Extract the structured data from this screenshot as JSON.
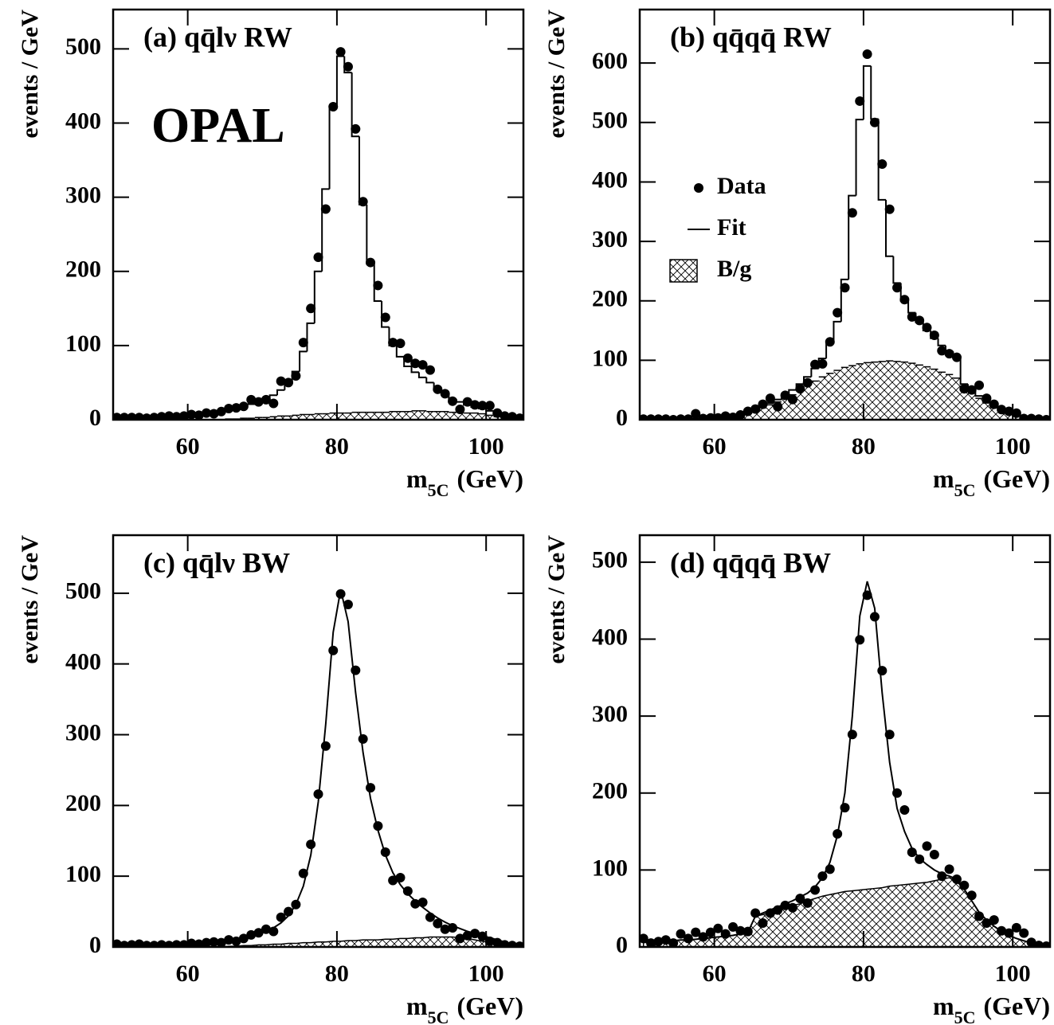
{
  "chart_data": [
    {
      "type": "step",
      "panel_label": "(a) qq̄lν RW",
      "annotation": "OPAL",
      "ylabel": "events / GeV",
      "xlabel": "m",
      "xlabel_sub": "5C",
      "xlabel_unit": "(GeV)",
      "xlim": [
        50,
        105
      ],
      "ylim": [
        0,
        553
      ],
      "xticks": [
        60,
        80,
        100
      ],
      "yticks": [
        0,
        100,
        200,
        300,
        400,
        500
      ],
      "bins": [
        50,
        51,
        52,
        53,
        54,
        55,
        56,
        57,
        58,
        59,
        60,
        61,
        62,
        63,
        64,
        65,
        66,
        67,
        68,
        69,
        70,
        71,
        72,
        73,
        74,
        75,
        76,
        77,
        78,
        79,
        80,
        81,
        82,
        83,
        84,
        85,
        86,
        87,
        88,
        89,
        90,
        91,
        92,
        93,
        94,
        95,
        96,
        97,
        98,
        99,
        100,
        101,
        102,
        103,
        104,
        105
      ],
      "x": [
        50.5,
        51.5,
        52.5,
        53.5,
        54.5,
        55.5,
        56.5,
        57.5,
        58.5,
        59.5,
        60.5,
        61.5,
        62.5,
        63.5,
        64.5,
        65.5,
        66.5,
        67.5,
        68.5,
        69.5,
        70.5,
        71.5,
        72.5,
        73.5,
        74.5,
        75.5,
        76.5,
        77.5,
        78.5,
        79.5,
        80.5,
        81.5,
        82.5,
        83.5,
        84.5,
        85.5,
        86.5,
        87.5,
        88.5,
        89.5,
        90.5,
        91.5,
        92.5,
        93.5,
        94.5,
        95.5,
        96.5,
        97.5,
        98.5,
        99.5,
        100.5,
        101.5,
        102.5,
        103.5,
        104.5
      ],
      "series": [
        {
          "style": "hatched",
          "color": "#000000",
          "values": [
            0,
            0,
            0,
            0,
            0,
            0,
            0,
            0,
            0,
            0,
            0,
            0,
            0,
            0,
            0,
            1,
            1,
            2,
            2,
            3,
            3,
            4,
            5,
            5,
            6,
            7,
            7,
            8,
            8,
            9,
            9,
            9,
            10,
            10,
            10,
            10,
            10,
            11,
            11,
            11,
            12,
            12,
            11,
            11,
            11,
            10,
            10,
            9,
            9,
            8,
            6,
            4,
            3,
            2,
            1
          ]
        },
        {
          "style": "fit",
          "color": "#000000",
          "values": [
            2,
            2,
            2,
            2,
            3,
            3,
            3,
            4,
            4,
            5,
            6,
            7,
            8,
            9,
            11,
            13,
            15,
            18,
            21,
            24,
            28,
            33,
            40,
            50,
            65,
            92,
            130,
            200,
            311,
            422,
            490,
            468,
            382,
            290,
            210,
            160,
            125,
            100,
            85,
            72,
            64,
            57,
            50,
            42,
            35,
            28,
            24,
            20,
            17,
            15,
            12,
            9,
            6,
            4,
            3
          ]
        },
        {
          "style": "points",
          "color": "#000000",
          "values": [
            3,
            3,
            3,
            3,
            2,
            3,
            4,
            5,
            4,
            5,
            7,
            6,
            9,
            8,
            11,
            15,
            16,
            18,
            27,
            24,
            27,
            22,
            52,
            50,
            59,
            104,
            150,
            219,
            284,
            422,
            496,
            476,
            392,
            294,
            212,
            181,
            138,
            104,
            103,
            83,
            76,
            74,
            67,
            41,
            35,
            25,
            14,
            24,
            20,
            19,
            19,
            9,
            5,
            4,
            2
          ]
        }
      ]
    },
    {
      "type": "step",
      "panel_label": "(b) qq̄qq̄ RW",
      "ylabel": "events / GeV",
      "xlabel": "m",
      "xlabel_sub": "5C",
      "xlabel_unit": "(GeV)",
      "legend": "center left",
      "xlim": [
        50,
        105
      ],
      "ylim": [
        0,
        690
      ],
      "xticks": [
        60,
        80,
        100
      ],
      "yticks": [
        0,
        100,
        200,
        300,
        400,
        500,
        600
      ],
      "bins": [
        50,
        51,
        52,
        53,
        54,
        55,
        56,
        57,
        58,
        59,
        60,
        61,
        62,
        63,
        64,
        65,
        66,
        67,
        68,
        69,
        70,
        71,
        72,
        73,
        74,
        75,
        76,
        77,
        78,
        79,
        80,
        81,
        82,
        83,
        84,
        85,
        86,
        87,
        88,
        89,
        90,
        91,
        92,
        93,
        94,
        95,
        96,
        97,
        98,
        99,
        100,
        101,
        102,
        103,
        104,
        105
      ],
      "x": [
        50.5,
        51.5,
        52.5,
        53.5,
        54.5,
        55.5,
        56.5,
        57.5,
        58.5,
        59.5,
        60.5,
        61.5,
        62.5,
        63.5,
        64.5,
        65.5,
        66.5,
        67.5,
        68.5,
        69.5,
        70.5,
        71.5,
        72.5,
        73.5,
        74.5,
        75.5,
        76.5,
        77.5,
        78.5,
        79.5,
        80.5,
        81.5,
        82.5,
        83.5,
        84.5,
        85.5,
        86.5,
        87.5,
        88.5,
        89.5,
        90.5,
        91.5,
        92.5,
        93.5,
        94.5,
        95.5,
        96.5,
        97.5,
        98.5,
        99.5,
        100.5,
        101.5,
        102.5,
        103.5,
        104.5
      ],
      "series": [
        {
          "name": "B/g",
          "style": "hatched",
          "color": "#000000",
          "values": [
            0,
            0,
            0,
            0,
            0,
            0,
            1,
            1,
            2,
            3,
            4,
            5,
            7,
            9,
            12,
            16,
            20,
            25,
            30,
            36,
            42,
            50,
            58,
            65,
            72,
            78,
            83,
            88,
            91,
            94,
            96,
            97,
            98,
            99,
            98,
            97,
            95,
            92,
            89,
            85,
            80,
            76,
            70,
            55,
            45,
            36,
            28,
            20,
            14,
            10,
            6,
            3,
            2,
            1,
            0
          ]
        },
        {
          "name": "Fit",
          "style": "fit",
          "color": "#000000",
          "values": [
            1,
            1,
            1,
            1,
            1,
            1,
            2,
            2,
            3,
            4,
            5,
            6,
            8,
            10,
            14,
            18,
            23,
            28,
            34,
            42,
            50,
            60,
            72,
            86,
            103,
            128,
            165,
            236,
            377,
            505,
            595,
            506,
            370,
            275,
            230,
            200,
            180,
            164,
            150,
            137,
            125,
            115,
            107,
            60,
            50,
            40,
            30,
            22,
            16,
            11,
            7,
            4,
            2,
            1,
            1
          ]
        },
        {
          "name": "Data",
          "style": "points",
          "color": "#000000",
          "values": [
            1,
            1,
            1,
            1,
            0,
            1,
            1,
            10,
            2,
            3,
            3,
            6,
            4,
            8,
            14,
            18,
            26,
            36,
            22,
            41,
            34,
            52,
            62,
            93,
            94,
            131,
            180,
            222,
            348,
            536,
            615,
            500,
            430,
            354,
            222,
            202,
            173,
            167,
            155,
            142,
            116,
            111,
            105,
            52,
            50,
            58,
            36,
            26,
            17,
            14,
            11,
            2,
            2,
            1,
            0
          ]
        }
      ]
    },
    {
      "type": "curve",
      "panel_label": "(c) qq̄lν BW",
      "ylabel": "events / GeV",
      "xlabel": "m",
      "xlabel_sub": "5C",
      "xlabel_unit": "(GeV)",
      "xlim": [
        50,
        105
      ],
      "ylim": [
        0,
        582
      ],
      "xticks": [
        60,
        80,
        100
      ],
      "yticks": [
        0,
        100,
        200,
        300,
        400,
        500
      ],
      "x": [
        50.5,
        51.5,
        52.5,
        53.5,
        54.5,
        55.5,
        56.5,
        57.5,
        58.5,
        59.5,
        60.5,
        61.5,
        62.5,
        63.5,
        64.5,
        65.5,
        66.5,
        67.5,
        68.5,
        69.5,
        70.5,
        71.5,
        72.5,
        73.5,
        74.5,
        75.5,
        76.5,
        77.5,
        78.5,
        79.5,
        80.5,
        81.5,
        82.5,
        83.5,
        84.5,
        85.5,
        86.5,
        87.5,
        88.5,
        89.5,
        90.5,
        91.5,
        92.5,
        93.5,
        94.5,
        95.5,
        96.5,
        97.5,
        98.5,
        99.5,
        100.5,
        101.5,
        102.5,
        103.5,
        104.5
      ],
      "series": [
        {
          "style": "hatched",
          "color": "#000000",
          "values": [
            0,
            0,
            0,
            0,
            0,
            0,
            0,
            0,
            0,
            0,
            0,
            0,
            0,
            0,
            0,
            1,
            1,
            2,
            2,
            3,
            3,
            4,
            4,
            5,
            5,
            6,
            6,
            7,
            7,
            8,
            8,
            9,
            9,
            10,
            10,
            10,
            11,
            11,
            12,
            12,
            13,
            13,
            14,
            14,
            14,
            14,
            13,
            12,
            10,
            8,
            6,
            4,
            3,
            2,
            1
          ]
        },
        {
          "style": "fit",
          "color": "#000000",
          "values": [
            2,
            2,
            2,
            2,
            3,
            3,
            3,
            3,
            4,
            4,
            5,
            5,
            6,
            7,
            8,
            9,
            11,
            13,
            15,
            18,
            22,
            27,
            34,
            44,
            60,
            86,
            130,
            205,
            315,
            445,
            505,
            460,
            360,
            275,
            210,
            165,
            130,
            105,
            88,
            75,
            65,
            56,
            48,
            41,
            35,
            30,
            26,
            22,
            19,
            16,
            13,
            10,
            7,
            4,
            2
          ]
        },
        {
          "style": "points",
          "color": "#000000",
          "values": [
            4,
            2,
            3,
            4,
            2,
            2,
            3,
            2,
            3,
            3,
            5,
            4,
            6,
            7,
            6,
            10,
            8,
            12,
            17,
            20,
            25,
            22,
            42,
            50,
            60,
            104,
            145,
            216,
            284,
            419,
            499,
            484,
            391,
            294,
            225,
            171,
            134,
            94,
            98,
            79,
            61,
            63,
            42,
            33,
            25,
            27,
            12,
            16,
            19,
            15,
            8,
            6,
            3,
            2,
            1
          ]
        }
      ]
    },
    {
      "type": "curve",
      "panel_label": "(d) qq̄qq̄ BW",
      "ylabel": "events / GeV",
      "xlabel": "m",
      "xlabel_sub": "5C",
      "xlabel_unit": "(GeV)",
      "xlim": [
        50,
        105
      ],
      "ylim": [
        0,
        535
      ],
      "xticks": [
        60,
        80,
        100
      ],
      "yticks": [
        0,
        100,
        200,
        300,
        400,
        500
      ],
      "x": [
        50.5,
        51.5,
        52.5,
        53.5,
        54.5,
        55.5,
        56.5,
        57.5,
        58.5,
        59.5,
        60.5,
        61.5,
        62.5,
        63.5,
        64.5,
        65.5,
        66.5,
        67.5,
        68.5,
        69.5,
        70.5,
        71.5,
        72.5,
        73.5,
        74.5,
        75.5,
        76.5,
        77.5,
        78.5,
        79.5,
        80.5,
        81.5,
        82.5,
        83.5,
        84.5,
        85.5,
        86.5,
        87.5,
        88.5,
        89.5,
        90.5,
        91.5,
        92.5,
        93.5,
        94.5,
        95.5,
        96.5,
        97.5,
        98.5,
        99.5,
        100.5,
        101.5,
        102.5,
        103.5,
        104.5
      ],
      "series": [
        {
          "style": "hatched",
          "color": "#000000",
          "values": [
            6,
            6,
            7,
            7,
            8,
            9,
            9,
            10,
            11,
            12,
            13,
            14,
            15,
            17,
            19,
            40,
            42,
            45,
            48,
            51,
            54,
            56,
            60,
            63,
            66,
            68,
            70,
            72,
            73,
            74,
            75,
            76,
            77,
            79,
            80,
            81,
            82,
            83,
            84,
            86,
            88,
            90,
            85,
            75,
            60,
            45,
            35,
            27,
            20,
            15,
            11,
            8,
            5,
            3,
            2
          ]
        },
        {
          "style": "fit",
          "color": "#000000",
          "values": [
            6,
            6,
            7,
            7,
            8,
            9,
            9,
            10,
            11,
            12,
            13,
            14,
            15,
            17,
            19,
            40,
            44,
            48,
            52,
            56,
            60,
            65,
            70,
            78,
            90,
            110,
            145,
            200,
            300,
            430,
            475,
            440,
            330,
            240,
            180,
            150,
            128,
            115,
            107,
            100,
            95,
            92,
            88,
            75,
            60,
            45,
            35,
            27,
            20,
            15,
            11,
            8,
            5,
            3,
            2
          ]
        },
        {
          "style": "points",
          "color": "#000000",
          "values": [
            11,
            5,
            7,
            9,
            5,
            17,
            11,
            19,
            13,
            19,
            24,
            17,
            26,
            21,
            20,
            44,
            31,
            44,
            48,
            54,
            51,
            63,
            57,
            74,
            92,
            101,
            147,
            181,
            276,
            399,
            457,
            429,
            359,
            276,
            200,
            178,
            123,
            114,
            131,
            120,
            92,
            101,
            88,
            80,
            67,
            40,
            31,
            35,
            21,
            18,
            25,
            18,
            6,
            2,
            1
          ]
        }
      ]
    }
  ]
}
